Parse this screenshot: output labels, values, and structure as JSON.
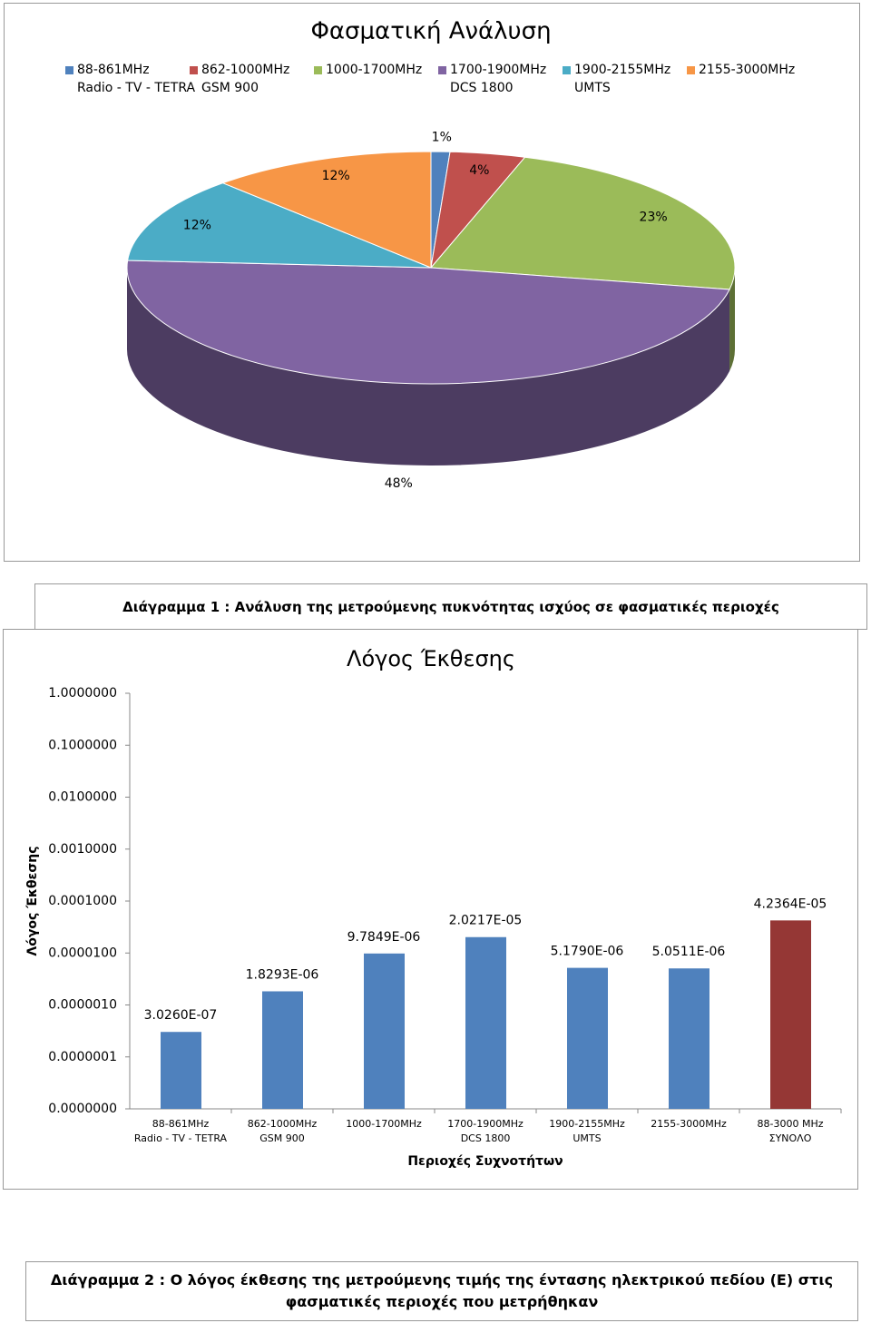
{
  "chart_data": [
    {
      "type": "pie",
      "title": "Φασματική Ανάλυση",
      "categories": [
        "88-861MHz\nRadio - TV - TETRA",
        "862-1000MHz\nGSM 900",
        "1000-1700MHz",
        "1700-1900MHz\nDCS 1800",
        "1900-2155MHz\nUMTS",
        "2155-3000MHz"
      ],
      "values": [
        1,
        4,
        23,
        48,
        12,
        12
      ],
      "value_labels": [
        "1%",
        "4%",
        "23%",
        "48%",
        "12%",
        "12%"
      ],
      "colors": [
        "#4f81bd",
        "#c0504d",
        "#9bbb59",
        "#8064a2",
        "#4bacc6",
        "#f79646"
      ],
      "legend": "top"
    },
    {
      "type": "bar",
      "title": "Λόγος Έκθεσης",
      "ylabel": "Λόγος Έκθεσης",
      "xlabel": "Περιοχές Συχνοτήτων",
      "categories": [
        "88-861MHz\nRadio - TV - TETRA",
        "862-1000MHz\nGSM 900",
        "1000-1700MHz",
        "1700-1900MHz\nDCS 1800",
        "1900-2155MHz\nUMTS",
        "2155-3000MHz",
        "88-3000 MHz\nΣΥΝΟΛΟ"
      ],
      "values": [
        3.026e-07,
        1.8293e-06,
        9.7849e-06,
        2.0217e-05,
        5.179e-06,
        5.0511e-06,
        4.2364e-05
      ],
      "value_labels": [
        "3.0260E-07",
        "1.8293E-06",
        "9.7849E-06",
        "2.0217E-05",
        "5.1790E-06",
        "5.0511E-06",
        "4.2364E-05"
      ],
      "colors": [
        "#4f81bd",
        "#4f81bd",
        "#4f81bd",
        "#4f81bd",
        "#4f81bd",
        "#4f81bd",
        "#953735"
      ],
      "log_scale": true,
      "grid": false,
      "ylim": [
        1e-08,
        1
      ],
      "yticks": [
        {
          "value": 1e-08,
          "label": "0.0000000"
        },
        {
          "value": 1e-07,
          "label": "0.0000001"
        },
        {
          "value": 1e-06,
          "label": "0.0000010"
        },
        {
          "value": 1e-05,
          "label": "0.0000100"
        },
        {
          "value": 0.0001,
          "label": "0.0001000"
        },
        {
          "value": 0.001,
          "label": "0.0010000"
        },
        {
          "value": 0.01,
          "label": "0.0100000"
        },
        {
          "value": 0.1,
          "label": "0.1000000"
        },
        {
          "value": 1,
          "label": "1.0000000"
        }
      ]
    }
  ],
  "captions": [
    "Διάγραμμα 1 : Ανάλυση της μετρούμενης πυκνότητας ισχύος σε φασματικές περιοχές",
    "Διάγραμμα 2 : Ο λόγος έκθεσης της μετρούμενης τιμής της έντασης ηλεκτρικού πεδίου (Ε) στις φασματικές περιοχές που μετρήθηκαν"
  ]
}
